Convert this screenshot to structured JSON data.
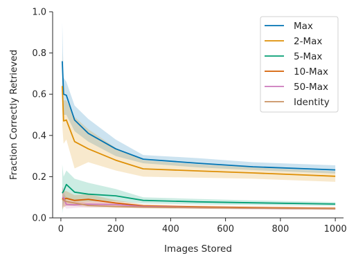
{
  "chart_data": {
    "type": "line",
    "title": "",
    "xlabel": "Images Stored",
    "ylabel": "Fraction Correctly Retrieved",
    "xlim": [
      -30,
      1030
    ],
    "ylim": [
      0.0,
      1.0
    ],
    "xticks": [
      0,
      200,
      400,
      600,
      800,
      1000
    ],
    "yticks": [
      0.0,
      0.2,
      0.4,
      0.6,
      0.8,
      1.0
    ],
    "xtick_labels": [
      "0",
      "200",
      "400",
      "600",
      "800",
      "1000"
    ],
    "ytick_labels": [
      "0.0",
      "0.2",
      "0.4",
      "0.6",
      "0.8",
      "1.0"
    ],
    "grid": false,
    "legend_position": "top-right",
    "series": [
      {
        "name": "Max",
        "color": "#0173b2",
        "x": [
          5,
          10,
          20,
          50,
          100,
          200,
          300,
          500,
          700,
          1000
        ],
        "y": [
          0.76,
          0.6,
          0.595,
          0.475,
          0.41,
          0.335,
          0.285,
          0.265,
          0.248,
          0.233
        ],
        "lower": [
          0.57,
          0.5,
          0.5,
          0.42,
          0.37,
          0.3,
          0.265,
          0.245,
          0.232,
          0.215
        ],
        "upper": [
          0.95,
          0.68,
          0.66,
          0.545,
          0.48,
          0.38,
          0.305,
          0.29,
          0.27,
          0.255
        ]
      },
      {
        "name": "2-Max",
        "color": "#de8f05",
        "x": [
          5,
          10,
          20,
          50,
          100,
          200,
          300,
          500,
          700,
          1000
        ],
        "y": [
          0.64,
          0.47,
          0.475,
          0.37,
          0.335,
          0.28,
          0.238,
          0.228,
          0.218,
          0.202
        ],
        "lower": [
          0.45,
          0.36,
          0.38,
          0.24,
          0.27,
          0.23,
          0.2,
          0.195,
          0.19,
          0.175
        ],
        "upper": [
          0.8,
          0.57,
          0.57,
          0.49,
          0.43,
          0.34,
          0.28,
          0.26,
          0.245,
          0.225
        ]
      },
      {
        "name": "5-Max",
        "color": "#029e73",
        "x": [
          5,
          10,
          20,
          50,
          100,
          200,
          300,
          500,
          700,
          1000
        ],
        "y": [
          0.12,
          0.13,
          0.162,
          0.125,
          0.115,
          0.107,
          0.085,
          0.078,
          0.073,
          0.067
        ],
        "lower": [
          0.02,
          0.07,
          0.09,
          0.08,
          0.08,
          0.08,
          0.07,
          0.065,
          0.062,
          0.058
        ],
        "upper": [
          0.26,
          0.2,
          0.23,
          0.19,
          0.17,
          0.14,
          0.1,
          0.092,
          0.085,
          0.077
        ]
      },
      {
        "name": "10-Max",
        "color": "#d55e00",
        "x": [
          5,
          10,
          20,
          50,
          100,
          200,
          300,
          500,
          700,
          1000
        ],
        "y": [
          0.095,
          0.09,
          0.095,
          0.085,
          0.09,
          0.072,
          0.058,
          0.053,
          0.05,
          0.046
        ],
        "lower": [
          0.04,
          0.05,
          0.06,
          0.06,
          0.065,
          0.058,
          0.05,
          0.047,
          0.044,
          0.041
        ],
        "upper": [
          0.15,
          0.13,
          0.13,
          0.11,
          0.115,
          0.086,
          0.066,
          0.06,
          0.056,
          0.052
        ]
      },
      {
        "name": "50-Max",
        "color": "#cc78bc",
        "x": [
          5,
          10,
          20,
          50,
          100,
          200,
          300,
          500,
          700,
          1000
        ],
        "y": [
          0.1,
          0.098,
          0.065,
          0.063,
          0.066,
          0.065,
          0.055,
          0.05,
          0.047,
          0.044
        ],
        "lower": [
          0.05,
          0.06,
          0.045,
          0.048,
          0.052,
          0.054,
          0.048,
          0.044,
          0.041,
          0.039
        ],
        "upper": [
          0.15,
          0.14,
          0.085,
          0.078,
          0.08,
          0.076,
          0.062,
          0.056,
          0.053,
          0.049
        ]
      },
      {
        "name": "Identity",
        "color": "#ca9161",
        "x": [
          5,
          10,
          20,
          50,
          100,
          200,
          300,
          500,
          700,
          1000
        ],
        "y": [
          0.09,
          0.085,
          0.08,
          0.072,
          0.06,
          0.055,
          0.052,
          0.049,
          0.047,
          0.044
        ],
        "lower": [
          0.05,
          0.055,
          0.058,
          0.056,
          0.05,
          0.047,
          0.046,
          0.044,
          0.042,
          0.04
        ],
        "upper": [
          0.13,
          0.115,
          0.102,
          0.088,
          0.07,
          0.063,
          0.058,
          0.054,
          0.052,
          0.048
        ]
      }
    ]
  }
}
